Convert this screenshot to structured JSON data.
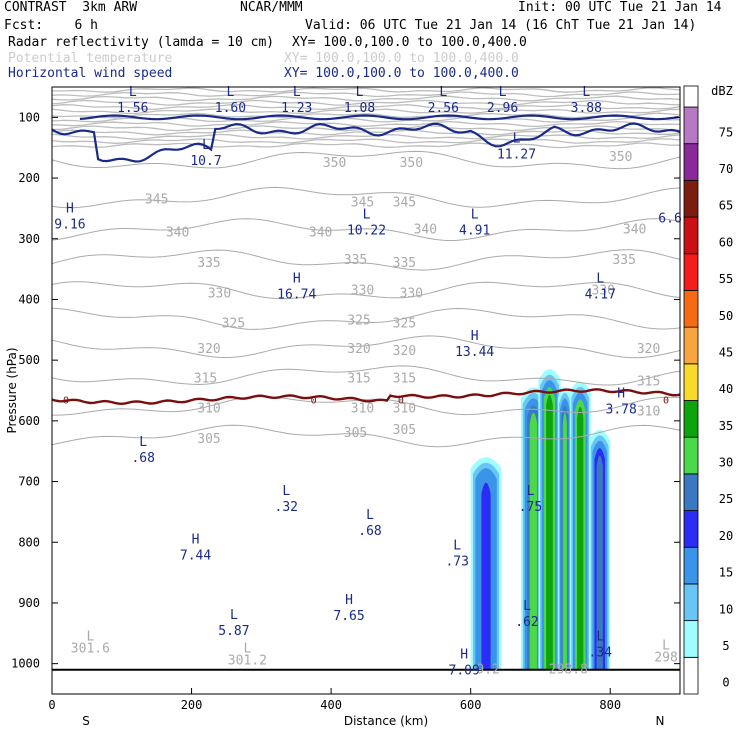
{
  "header": {
    "title_left": "CONTRAST  3km ARW",
    "org": "NCAR/MMM",
    "init": "Init: 00 UTC Tue 21 Jan 14",
    "fcst": "Fcst:    6 h",
    "valid": "Valid: 06 UTC Tue 21 Jan 14 (16 ChT Tue 21 Jan 14)",
    "field1_name": "Radar reflectivity (lamda = 10 cm)",
    "field1_xy": "XY= 100.0,100.0 to 100.0,400.0",
    "field2_name": "Potential temperature",
    "field2_xy": "XY= 100.0,100.0 to 100.0,400.0",
    "field3_name": "Horizontal wind speed",
    "field3_xy": "XY= 100.0,100.0 to 100.0,400.0"
  },
  "colors": {
    "wind": "#1a2a8a",
    "theta": "#aaaaaa",
    "freezing": "#7a0e0e",
    "ground": "#000000"
  },
  "chart_data": {
    "type": "cross-section",
    "xlabel": "Distance (km)",
    "ylabel": "Pressure (hPa)",
    "xlim": [
      0,
      900
    ],
    "ylim": [
      1050,
      50
    ],
    "x_ticks": [
      0,
      200,
      400,
      600,
      800
    ],
    "y_ticks": [
      100,
      200,
      300,
      400,
      500,
      600,
      700,
      800,
      900,
      1000
    ],
    "x_end_labels": {
      "left": "S",
      "right": "N"
    },
    "theta_contours": [
      {
        "value": 350,
        "label": "350",
        "base_p": 170
      },
      {
        "value": 345,
        "label": "345",
        "base_p": 232
      },
      {
        "value": 340,
        "label": "340",
        "base_p": 285
      },
      {
        "value": 335,
        "label": "335",
        "base_p": 335
      },
      {
        "value": 330,
        "label": "330",
        "base_p": 385
      },
      {
        "value": 325,
        "label": "325",
        "base_p": 432
      },
      {
        "value": 320,
        "label": "320",
        "base_p": 478
      },
      {
        "value": 315,
        "label": "315",
        "base_p": 525
      },
      {
        "value": 310,
        "label": "310",
        "base_p": 575
      },
      {
        "value": 305,
        "label": "305",
        "base_p": 625
      }
    ],
    "theta_labels": [
      {
        "x": 405,
        "p": 175,
        "text": "350"
      },
      {
        "x": 515,
        "p": 175,
        "text": "350"
      },
      {
        "x": 815,
        "p": 165,
        "text": "350"
      },
      {
        "x": 150,
        "p": 235,
        "text": "345"
      },
      {
        "x": 445,
        "p": 240,
        "text": "345"
      },
      {
        "x": 505,
        "p": 240,
        "text": "345"
      },
      {
        "x": 180,
        "p": 290,
        "text": "340"
      },
      {
        "x": 385,
        "p": 290,
        "text": "340"
      },
      {
        "x": 535,
        "p": 285,
        "text": "340"
      },
      {
        "x": 835,
        "p": 285,
        "text": "340"
      },
      {
        "x": 225,
        "p": 340,
        "text": "335"
      },
      {
        "x": 435,
        "p": 335,
        "text": "335"
      },
      {
        "x": 505,
        "p": 340,
        "text": "335"
      },
      {
        "x": 820,
        "p": 335,
        "text": "335"
      },
      {
        "x": 240,
        "p": 390,
        "text": "330"
      },
      {
        "x": 445,
        "p": 385,
        "text": "330"
      },
      {
        "x": 515,
        "p": 390,
        "text": "330"
      },
      {
        "x": 790,
        "p": 385,
        "text": "330"
      },
      {
        "x": 260,
        "p": 440,
        "text": "325"
      },
      {
        "x": 440,
        "p": 435,
        "text": "325"
      },
      {
        "x": 505,
        "p": 440,
        "text": "325"
      },
      {
        "x": 225,
        "p": 482,
        "text": "320"
      },
      {
        "x": 440,
        "p": 482,
        "text": "320"
      },
      {
        "x": 505,
        "p": 485,
        "text": "320"
      },
      {
        "x": 855,
        "p": 482,
        "text": "320"
      },
      {
        "x": 220,
        "p": 530,
        "text": "315"
      },
      {
        "x": 440,
        "p": 530,
        "text": "315"
      },
      {
        "x": 505,
        "p": 530,
        "text": "315"
      },
      {
        "x": 855,
        "p": 535,
        "text": "315"
      },
      {
        "x": 225,
        "p": 580,
        "text": "310"
      },
      {
        "x": 445,
        "p": 580,
        "text": "310"
      },
      {
        "x": 505,
        "p": 580,
        "text": "310"
      },
      {
        "x": 855,
        "p": 585,
        "text": "310"
      },
      {
        "x": 225,
        "p": 630,
        "text": "305"
      },
      {
        "x": 435,
        "p": 620,
        "text": "305"
      },
      {
        "x": 505,
        "p": 615,
        "text": "305"
      }
    ],
    "theta_surface_labels": [
      {
        "x": 55,
        "p": 955,
        "text": "L"
      },
      {
        "x": 55,
        "p": 975,
        "text": "301.6"
      },
      {
        "x": 280,
        "p": 975,
        "text": "L"
      },
      {
        "x": 280,
        "p": 995,
        "text": "301.2"
      },
      {
        "x": 625,
        "p": 1010,
        "text": "9.2"
      },
      {
        "x": 740,
        "p": 1010,
        "text": "298.8"
      },
      {
        "x": 880,
        "p": 970,
        "text": "L"
      },
      {
        "x": 880,
        "p": 990,
        "text": "298"
      }
    ],
    "wind_extrema": [
      {
        "x": 110,
        "p": 78,
        "type": "L",
        "value": "1.56"
      },
      {
        "x": 250,
        "p": 78,
        "type": "L",
        "value": "1.60"
      },
      {
        "x": 345,
        "p": 78,
        "type": "L",
        "value": "1.23"
      },
      {
        "x": 435,
        "p": 78,
        "type": "L",
        "value": "1.08"
      },
      {
        "x": 555,
        "p": 78,
        "type": "L",
        "value": "2.56"
      },
      {
        "x": 640,
        "p": 78,
        "type": "L",
        "value": "2.96"
      },
      {
        "x": 760,
        "p": 78,
        "type": "L",
        "value": "3.88"
      },
      {
        "x": 660,
        "p": 155,
        "type": "L",
        "value": "11.27"
      },
      {
        "x": 215,
        "p": 165,
        "type": "L",
        "value": "10.7"
      },
      {
        "x": 20,
        "p": 270,
        "type": "H",
        "value": "9.16"
      },
      {
        "x": 880,
        "p": 260,
        "type": "",
        "value": "6.6"
      },
      {
        "x": 445,
        "p": 280,
        "type": "L",
        "value": "10.22"
      },
      {
        "x": 600,
        "p": 280,
        "type": "L",
        "value": "4.91"
      },
      {
        "x": 345,
        "p": 385,
        "type": "H",
        "value": "16.74"
      },
      {
        "x": 780,
        "p": 385,
        "type": "L",
        "value": "4.17"
      },
      {
        "x": 600,
        "p": 480,
        "type": "H",
        "value": "13.44"
      },
      {
        "x": 810,
        "p": 575,
        "type": "H",
        "value": "3.78"
      },
      {
        "x": 125,
        "p": 655,
        "type": "L",
        "value": ".68"
      },
      {
        "x": 330,
        "p": 735,
        "type": "L",
        "value": ".32"
      },
      {
        "x": 680,
        "p": 735,
        "type": "L",
        "value": ".75"
      },
      {
        "x": 450,
        "p": 775,
        "type": "L",
        "value": ".68"
      },
      {
        "x": 200,
        "p": 815,
        "type": "H",
        "value": "7.44"
      },
      {
        "x": 575,
        "p": 825,
        "type": "L",
        "value": ".73"
      },
      {
        "x": 420,
        "p": 915,
        "type": "H",
        "value": "7.65"
      },
      {
        "x": 675,
        "p": 925,
        "type": "L",
        "value": ".62"
      },
      {
        "x": 255,
        "p": 940,
        "type": "L",
        "value": "5.87"
      },
      {
        "x": 780,
        "p": 975,
        "type": "L",
        "value": ".34"
      },
      {
        "x": 585,
        "p": 1005,
        "type": "H",
        "value": "7.09"
      }
    ],
    "freezing_level": {
      "value": 0,
      "label": "0",
      "p": 565
    },
    "freezing_labels": [
      20,
      375,
      500,
      880
    ],
    "ground_p": 1010,
    "reflectivity_columns": [
      {
        "center": 622,
        "halfwidth": 22,
        "top": 655,
        "core": 20
      },
      {
        "center": 690,
        "halfwidth": 18,
        "top": 540,
        "core": 30
      },
      {
        "center": 713,
        "halfwidth": 16,
        "top": 510,
        "core": 35
      },
      {
        "center": 735,
        "halfwidth": 10,
        "top": 540,
        "core": 30
      },
      {
        "center": 757,
        "halfwidth": 15,
        "top": 530,
        "core": 35
      },
      {
        "center": 785,
        "halfwidth": 15,
        "top": 610,
        "core": 25
      }
    ],
    "colorbar": {
      "unit": "dBZ",
      "levels": [
        0,
        5,
        10,
        15,
        20,
        25,
        30,
        35,
        40,
        45,
        50,
        55,
        60,
        65,
        70,
        75
      ],
      "colors": [
        "#ffffff",
        "#9ffcff",
        "#69c6f4",
        "#3a95e8",
        "#2b2cf5",
        "#3a79c2",
        "#4bd94b",
        "#0da40d",
        "#f7da2b",
        "#f7a53f",
        "#f56a15",
        "#f51c1c",
        "#c91015",
        "#7b1e10",
        "#8a2a9a",
        "#b77ac2"
      ]
    }
  }
}
